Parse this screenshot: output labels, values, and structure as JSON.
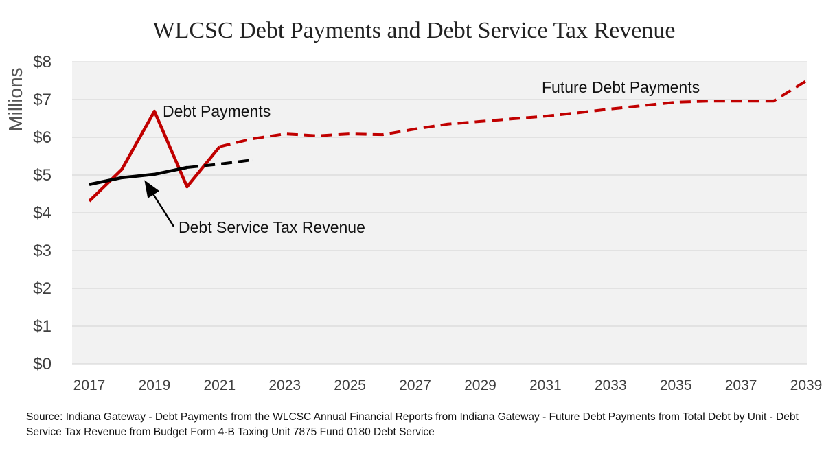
{
  "chart_data": {
    "type": "line",
    "title": "WLCSC Debt Payments and Debt Service Tax Revenue",
    "ylabel": "Millions",
    "xlabel": "",
    "ylim": [
      0,
      8
    ],
    "xlim": [
      2017,
      2039
    ],
    "yticks": [
      "$0",
      "$1",
      "$2",
      "$3",
      "$4",
      "$5",
      "$6",
      "$7",
      "$8"
    ],
    "xticks": [
      "2017",
      "2019",
      "2021",
      "2023",
      "2025",
      "2027",
      "2029",
      "2031",
      "2033",
      "2035",
      "2037",
      "2039"
    ],
    "grid": true,
    "series": [
      {
        "name": "Debt Payments",
        "color": "#C00000",
        "style": "solid",
        "x": [
          2017,
          2018,
          2019,
          2020,
          2021
        ],
        "values": [
          4.31,
          5.15,
          6.69,
          4.69,
          5.75
        ]
      },
      {
        "name": "Future Debt Payments",
        "color": "#C00000",
        "style": "dashed",
        "x": [
          2021,
          2022,
          2023,
          2024,
          2025,
          2026,
          2027,
          2028,
          2029,
          2030,
          2031,
          2032,
          2033,
          2034,
          2035,
          2036,
          2037,
          2038,
          2039
        ],
        "values": [
          5.75,
          5.96,
          6.09,
          6.04,
          6.09,
          6.07,
          6.22,
          6.35,
          6.42,
          6.49,
          6.56,
          6.65,
          6.75,
          6.84,
          6.93,
          6.96,
          6.96,
          6.96,
          7.49
        ]
      },
      {
        "name": "Debt Service Tax Revenue",
        "color": "#000000",
        "style": "solid",
        "x": [
          2017,
          2018,
          2019,
          2020
        ],
        "values": [
          4.75,
          4.93,
          5.02,
          5.2
        ]
      },
      {
        "name": "Debt Service Tax Revenue (projected)",
        "color": "#000000",
        "style": "dashed",
        "x": [
          2020,
          2021,
          2022
        ],
        "values": [
          5.2,
          5.29,
          5.4
        ]
      }
    ],
    "annotations": {
      "debt_payments": "Debt Payments",
      "future_debt_payments": "Future Debt Payments",
      "tax_revenue": "Debt Service Tax Revenue"
    }
  },
  "source": "Source: Indiana Gateway - Debt Payments from the WLCSC Annual Financial Reports from Indiana Gateway - Future Debt Payments from Total Debt by Unit - Debt Service Tax Revenue from Budget Form 4-B Taxing Unit 7875 Fund 0180 Debt Service"
}
